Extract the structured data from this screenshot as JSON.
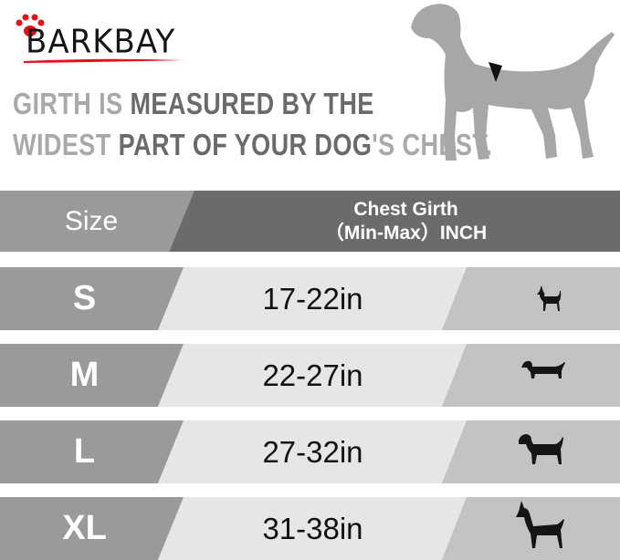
{
  "brand": {
    "name": "BARKBAY",
    "accent": "#e3101a"
  },
  "headline": {
    "line1": [
      {
        "text": "GIRTH IS ",
        "tone": "light"
      },
      {
        "text": "MEASURED BY THE",
        "tone": "dark"
      }
    ],
    "line2": [
      {
        "text": "WIDEST ",
        "tone": "light"
      },
      {
        "text": "PART OF YOUR DOG",
        "tone": "dark"
      },
      {
        "text": "'S CHEST.",
        "tone": "light"
      }
    ]
  },
  "table": {
    "header": {
      "size": "Size",
      "girth_line1": "Chest Girth",
      "girth_line2": "（Min-Max）INCH"
    },
    "rows": [
      {
        "size": "S",
        "girth": "17-22in",
        "icon": "chihuahua-icon"
      },
      {
        "size": "M",
        "girth": "22-27in",
        "icon": "dachshund-icon"
      },
      {
        "size": "L",
        "girth": "27-32in",
        "icon": "labrador-icon"
      },
      {
        "size": "XL",
        "girth": "31-38in",
        "icon": "great-dane-icon"
      }
    ]
  },
  "colors": {
    "size_cell": "#9a9a9a",
    "header_dark": "#6b6b6b",
    "girth_cell": "#e6e6e6",
    "icon_cell": "#c3c3c3"
  }
}
